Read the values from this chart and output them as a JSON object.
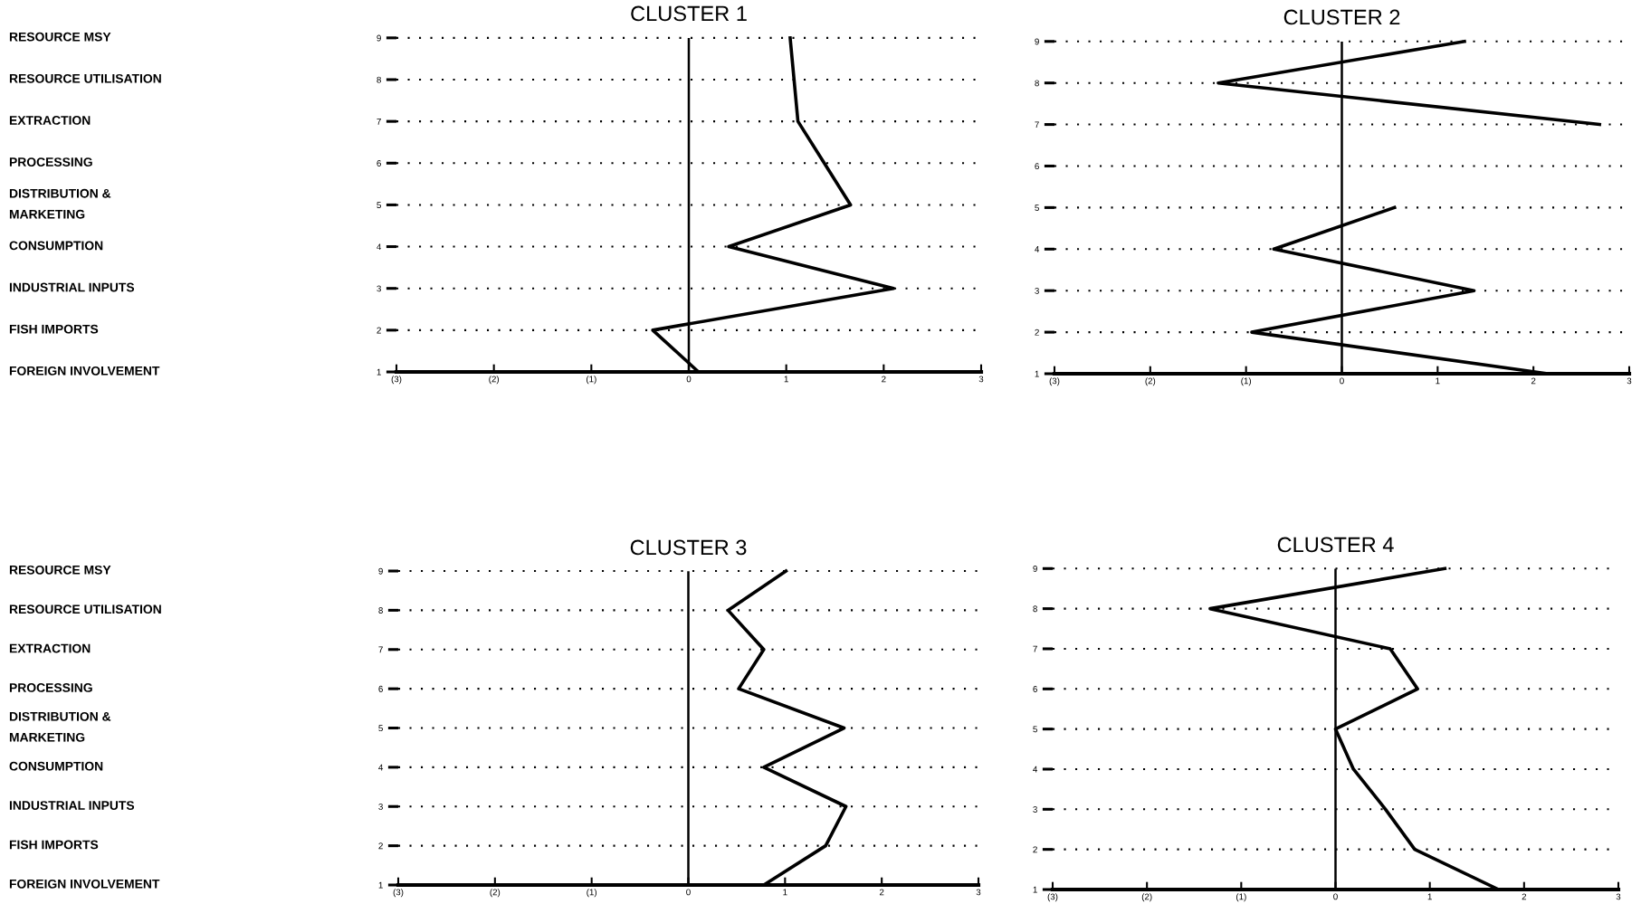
{
  "chart_data": [
    {
      "type": "line",
      "orientation": "horizontal",
      "title": "CLUSTER 1",
      "categories": [
        "9",
        "8",
        "7",
        "6",
        "5",
        "4",
        "3",
        "2",
        "1"
      ],
      "series": [
        {
          "color": "#000000",
          "values": [
            1.04,
            1.08,
            1.12,
            1.39,
            1.66,
            0.41,
            2.1,
            -0.37,
            0.1
          ]
        }
      ],
      "xlim": [
        -3,
        3
      ],
      "xticks": [
        {
          "value": -3,
          "label": "(3)"
        },
        {
          "value": -2,
          "label": "(2)"
        },
        {
          "value": -1,
          "label": "(1)"
        },
        0,
        1,
        2,
        3
      ],
      "ref_lines": [
        {
          "axis": "x",
          "value": 0,
          "color": "#000000"
        }
      ],
      "grid": "y",
      "line_style": "solid",
      "annotations": [
        "RESOURCE MSY",
        "RESOURCE UTILISATION",
        "EXTRACTION",
        "PROCESSING",
        "DISTRIBUTION &\nMARKETING",
        "CONSUMPTION",
        "INDUSTRIAL INPUTS",
        "FISH IMPORTS",
        "FOREIGN INVOLVEMENT"
      ]
    },
    {
      "type": "line",
      "orientation": "horizontal",
      "title": "CLUSTER 2",
      "categories": [
        "9",
        "8",
        "7",
        "6",
        "5",
        "4",
        "3",
        "2",
        "1"
      ],
      "series": [
        {
          "color": "#000000",
          "values": [
            1.28,
            -1.29,
            2.69,
            null,
            0.55,
            -0.71,
            1.38,
            -0.94,
            2.15
          ]
        }
      ],
      "xlim": [
        -3,
        3
      ],
      "xticks": [
        {
          "value": -3,
          "label": "(3)"
        },
        {
          "value": -2,
          "label": "(2)"
        },
        {
          "value": -1,
          "label": "(1)"
        },
        0,
        1,
        2,
        3
      ],
      "ref_lines": [
        {
          "axis": "x",
          "value": 0,
          "color": "#000000"
        }
      ],
      "grid": "y",
      "line_style": "solid"
    },
    {
      "type": "line",
      "orientation": "horizontal",
      "title": "CLUSTER 3",
      "categories": [
        "9",
        "8",
        "7",
        "6",
        "5",
        "4",
        "3",
        "2",
        "1"
      ],
      "series": [
        {
          "color": "#000000",
          "values": [
            1.01,
            0.41,
            0.78,
            0.52,
            1.61,
            0.78,
            1.63,
            1.42,
            0.78
          ]
        }
      ],
      "xlim": [
        -3,
        3
      ],
      "xticks": [
        {
          "value": -3,
          "label": "(3)"
        },
        {
          "value": -2,
          "label": "(2)"
        },
        {
          "value": -1,
          "label": "(1)"
        },
        0,
        1,
        2,
        3
      ],
      "ref_lines": [
        {
          "axis": "x",
          "value": 0,
          "color": "#000000"
        }
      ],
      "grid": "y",
      "line_style": "solid",
      "annotations": [
        "RESOURCE MSY",
        "RESOURCE UTILISATION",
        "EXTRACTION",
        "PROCESSING",
        "DISTRIBUTION &\nMARKETING",
        "CONSUMPTION",
        "INDUSTRIAL INPUTS",
        "FISH IMPORTS",
        "FOREIGN INVOLVEMENT"
      ]
    },
    {
      "type": "line",
      "orientation": "horizontal",
      "title": "CLUSTER 4",
      "categories": [
        "9",
        "8",
        "7",
        "6",
        "5",
        "4",
        "3",
        "2",
        "1"
      ],
      "series": [
        {
          "color": "#000000",
          "values": [
            1.16,
            -1.33,
            0.58,
            0.87,
            0.0,
            0.19,
            0.53,
            0.84,
            1.73
          ]
        }
      ],
      "xlim": [
        -3,
        3
      ],
      "xticks": [
        {
          "value": -3,
          "label": "(3)"
        },
        {
          "value": -2,
          "label": "(2)"
        },
        {
          "value": -1,
          "label": "(1)"
        },
        0,
        1,
        2,
        3
      ],
      "ref_lines": [
        {
          "axis": "x",
          "value": 0,
          "color": "#000000"
        }
      ],
      "grid": "y",
      "line_style": "solid"
    }
  ]
}
